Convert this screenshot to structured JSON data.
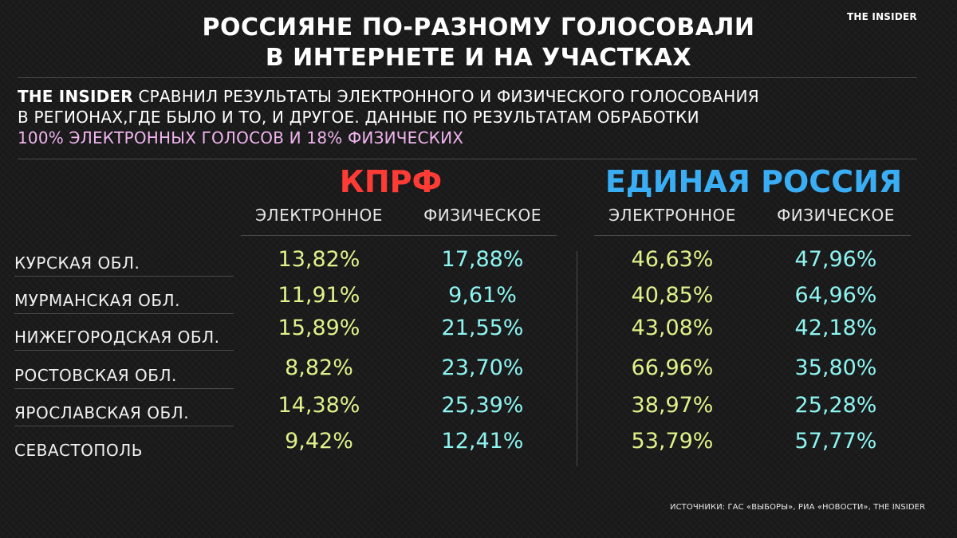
{
  "brand": "THE INSIDER",
  "title": {
    "line1": "РОССИЯНЕ ПО-РАЗНОМУ ГОЛОСОВАЛИ",
    "line2": "В ИНТЕРНЕТЕ И НА УЧАСТКАХ"
  },
  "intro": {
    "lead": "THE INSIDER",
    "line1_rest": " СРАВНИЛ РЕЗУЛЬТАТЫ ЭЛЕКТРОННОГО И ФИЗИЧЕСКОГО ГОЛОСОВАНИЯ",
    "line2": "В РЕГИОНАХ,ГДЕ БЫЛО И ТО, И ДРУГОЕ. ДАННЫЕ ПО РЕЗУЛЬТАТАМ ОБРАБОТКИ",
    "line3": "100% ЭЛЕКТРОННЫХ ГОЛОСОВ И 18% ФИЗИЧЕСКИХ"
  },
  "parties": {
    "kprf": "КПРФ",
    "er": "ЕДИНАЯ РОССИЯ"
  },
  "columns": {
    "electronic": "ЭЛЕКТРОННОЕ",
    "physical": "ФИЗИЧЕСКОЕ"
  },
  "rows": [
    {
      "region": "КУРСКАЯ ОБЛ.",
      "kprf_e": "13,82%",
      "kprf_p": "17,88%",
      "er_e": "46,63%",
      "er_p": "47,96%"
    },
    {
      "region": "МУРМАНСКАЯ ОБЛ.",
      "kprf_e": "11,91%",
      "kprf_p": "9,61%",
      "er_e": "40,85%",
      "er_p": "64,96%"
    },
    {
      "region": "НИЖЕГОРОДСКАЯ ОБЛ.",
      "kprf_e": "15,89%",
      "kprf_p": "21,55%",
      "er_e": "43,08%",
      "er_p": "42,18%"
    },
    {
      "region": "РОСТОВСКАЯ ОБЛ.",
      "kprf_e": "8,82%",
      "kprf_p": "23,70%",
      "er_e": "66,96%",
      "er_p": "35,80%"
    },
    {
      "region": "ЯРОСЛАВСКАЯ ОБЛ.",
      "kprf_e": "14,38%",
      "kprf_p": "25,39%",
      "er_e": "38,97%",
      "er_p": "25,28%"
    },
    {
      "region": "СЕВАСТОПОЛЬ",
      "kprf_e": "9,42%",
      "kprf_p": "12,41%",
      "er_e": "53,79%",
      "er_p": "57,77%"
    }
  ],
  "sources": "ИСТОЧНИКИ: ГАС «ВЫБОРЫ», РИА «НОВОСТИ», THE INSIDER",
  "colors": {
    "kprf": "#ff3b35",
    "er": "#3aaef4",
    "electronic_value": "#dff28a",
    "physical_value": "#8ef4f0",
    "highlight": "#f0b4ee"
  }
}
